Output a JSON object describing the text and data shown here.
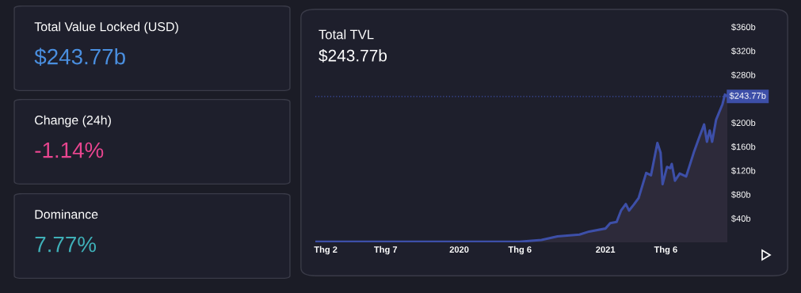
{
  "chart_data": [
    {
      "type": "other",
      "title": "Total Value Locked (USD)",
      "annotations": [
        "$243.77b"
      ],
      "color": "#4a8fe0"
    },
    {
      "type": "other",
      "title": "Change (24h)",
      "annotations": [
        "-1.14%"
      ],
      "color": "#e8458f"
    },
    {
      "type": "other",
      "title": "Dominance",
      "annotations": [
        "7.77%"
      ],
      "color": "#3fb0b8"
    },
    {
      "type": "area",
      "title": "Total TVL",
      "subtitle": "$243.77b",
      "x": [
        "2019-01-06",
        "2019-06-01",
        "2019-12-01",
        "2020-05-30",
        "2020-07-25",
        "2020-09-03",
        "2020-10-28",
        "2020-11-21",
        "2021-01-01",
        "2021-01-13",
        "2021-01-29",
        "2021-02-09",
        "2021-02-21",
        "2021-03-01",
        "2021-03-13",
        "2021-03-25",
        "2021-04-13",
        "2021-04-25",
        "2021-05-11",
        "2021-05-19",
        "2021-05-24",
        "2021-06-04",
        "2021-06-12",
        "2021-06-16",
        "2021-06-24",
        "2021-07-06",
        "2021-07-22",
        "2021-08-11",
        "2021-08-23",
        "2021-09-05",
        "2021-09-12",
        "2021-09-19",
        "2021-09-25",
        "2021-10-05",
        "2021-10-21",
        "2021-10-27",
        "2021-11-02"
      ],
      "series": [
        {
          "color": "#3d4fa8",
          "values": [
            1,
            1,
            1,
            1,
            4,
            10,
            13,
            18,
            23,
            32,
            34,
            53,
            64,
            53,
            63,
            74,
            116,
            112,
            166,
            150,
            97,
            126,
            124,
            131,
            103,
            115,
            110,
            152,
            174,
            197,
            168,
            187,
            168,
            205,
            231,
            247,
            244
          ]
        }
      ],
      "xlim": [
        "2019-01-06",
        "2021-11-02"
      ],
      "xticks": [
        {
          "value": "2019-02-01",
          "label": "Thg 2"
        },
        {
          "value": "2019-07-01",
          "label": "Thg 7"
        },
        {
          "value": "2020-01-01",
          "label": "2020"
        },
        {
          "value": "2020-06-01",
          "label": "Thg 6"
        },
        {
          "value": "2021-01-01",
          "label": "2021"
        },
        {
          "value": "2021-06-01",
          "label": "Thg 6"
        }
      ],
      "ylim": [
        0,
        360
      ],
      "yticks": [
        {
          "value": 40,
          "label": "$40b"
        },
        {
          "value": 80,
          "label": "$80b"
        },
        {
          "value": 120,
          "label": "$120b"
        },
        {
          "value": 160,
          "label": "$160b"
        },
        {
          "value": 200,
          "label": "$200b"
        },
        {
          "value": 280,
          "label": "$280b"
        },
        {
          "value": 320,
          "label": "$320b"
        },
        {
          "value": 360,
          "label": "$360b"
        }
      ],
      "ref_lines": [
        {
          "axis": "y",
          "value": 243.77,
          "label": "$243.77b",
          "color": "#3d4fa8",
          "line_style": "dotted"
        }
      ],
      "grid": false,
      "legend": false
    }
  ]
}
